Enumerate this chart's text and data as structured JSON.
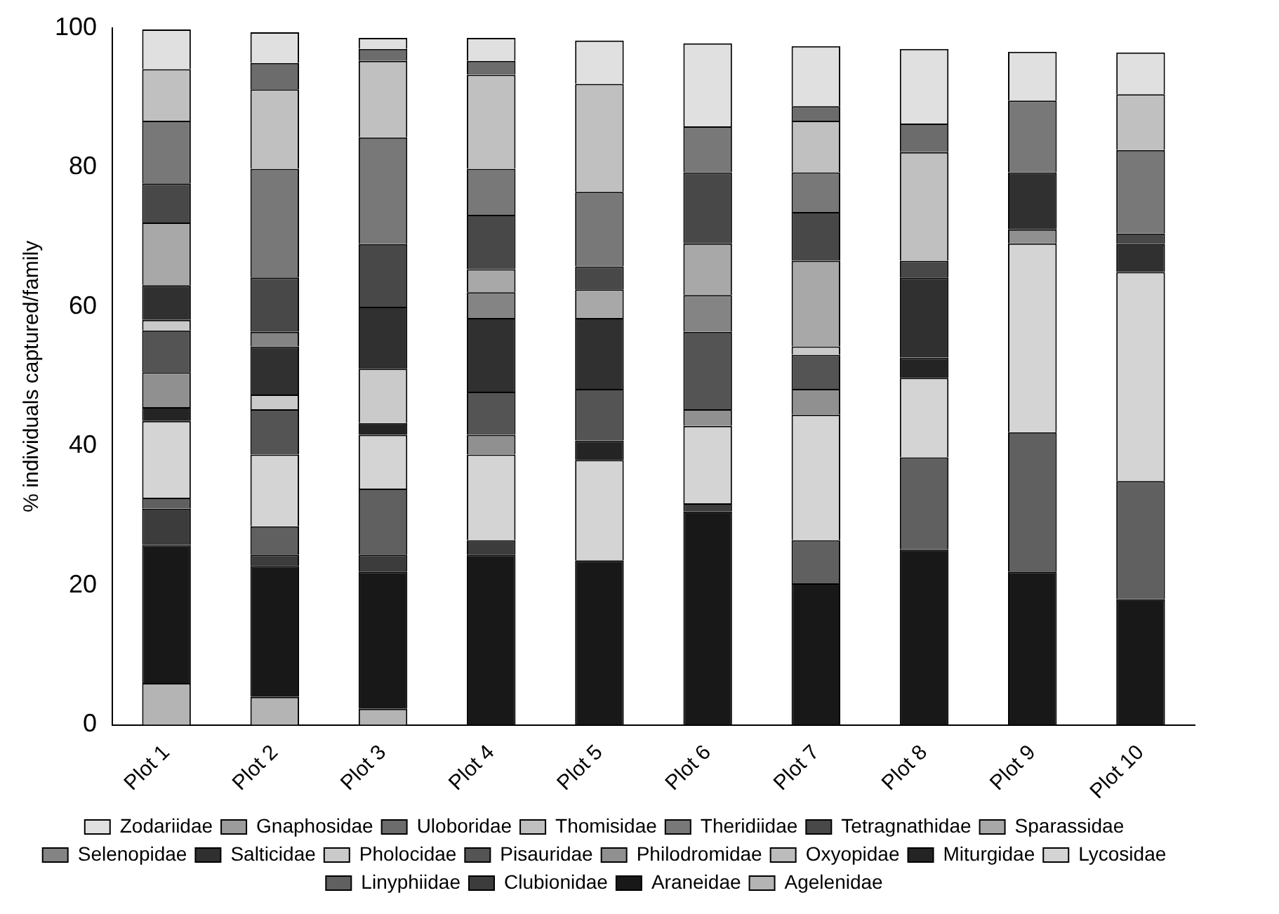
{
  "chart_data": {
    "type": "bar",
    "stacked": true,
    "ylabel": "% individuals captured/family",
    "categories": [
      "Plot 1",
      "Plot 2",
      "Plot 3",
      "Plot 4",
      "Plot 5",
      "Plot 6",
      "Plot 7",
      "Plot 8",
      "Plot 9",
      "Plot 10"
    ],
    "ylim": [
      0,
      100
    ],
    "yticks": [
      0,
      20,
      40,
      60,
      80,
      100
    ],
    "grid": false,
    "legend": "bottom",
    "series": [
      {
        "name": "Agelenidae",
        "color": "#b4b4b4",
        "values": [
          6,
          4,
          2.3,
          0,
          0,
          0,
          0,
          0,
          0,
          0
        ]
      },
      {
        "name": "Araneidae",
        "color": "#181818",
        "values": [
          19.8,
          18.8,
          19.7,
          24.4,
          23.6,
          30.6,
          20.3,
          25.2,
          22,
          18
        ]
      },
      {
        "name": "Clubionidae",
        "color": "#3c3c3c",
        "values": [
          5.2,
          1.6,
          2.4,
          2.1,
          0,
          1.2,
          0,
          0,
          0,
          0
        ]
      },
      {
        "name": "Linyphiidae",
        "color": "#606060",
        "values": [
          1.6,
          4.1,
          9.5,
          0,
          0,
          0,
          6.2,
          13.2,
          20,
          17
        ]
      },
      {
        "name": "Lycosidae",
        "color": "#d4d4d4",
        "values": [
          11,
          10.3,
          7.7,
          12.3,
          14.4,
          11.1,
          18,
          11.4,
          27.1,
          30
        ]
      },
      {
        "name": "Miturgidae",
        "color": "#242424",
        "values": [
          2,
          0,
          1.7,
          0,
          2.8,
          0,
          0,
          2.9,
          0,
          0
        ]
      },
      {
        "name": "Oxyopidae",
        "color": "#bcbcbc",
        "values": [
          0,
          0,
          0,
          0,
          0,
          0,
          0,
          0,
          0,
          0
        ]
      },
      {
        "name": "Philodromidae",
        "color": "#909090",
        "values": [
          5,
          0,
          0,
          2.8,
          0,
          2.4,
          3.7,
          0,
          2,
          0
        ]
      },
      {
        "name": "Pisauridae",
        "color": "#545454",
        "values": [
          6,
          6.5,
          0,
          6.2,
          7.4,
          11.1,
          4.9,
          0,
          0,
          0
        ]
      },
      {
        "name": "Pholocidae",
        "color": "#cacaca",
        "values": [
          1.5,
          2.1,
          7.8,
          0,
          0,
          0,
          1.2,
          0,
          0,
          0
        ]
      },
      {
        "name": "Salticidae",
        "color": "#303030",
        "values": [
          5,
          6.9,
          8.9,
          10.6,
          10.2,
          0,
          0,
          11.5,
          8.2,
          4
        ]
      },
      {
        "name": "Selenopidae",
        "color": "#848484",
        "values": [
          0,
          2.1,
          0,
          3.7,
          0,
          5.3,
          0,
          0,
          0,
          0
        ]
      },
      {
        "name": "Sparassidae",
        "color": "#a8a8a8",
        "values": [
          9,
          0,
          0,
          3.3,
          4.1,
          7.4,
          12.3,
          0,
          0,
          0
        ]
      },
      {
        "name": "Tetragnathidae",
        "color": "#484848",
        "values": [
          5.6,
          7.8,
          9,
          7.8,
          3.3,
          10.2,
          7,
          2.4,
          0,
          1.5
        ]
      },
      {
        "name": "Theridiidae",
        "color": "#787878",
        "values": [
          9,
          15.6,
          15.3,
          6.6,
          10.7,
          6.6,
          5.7,
          0,
          10.3,
          12
        ]
      },
      {
        "name": "Thomisidae",
        "color": "#c0c0c0",
        "values": [
          7.4,
          11.4,
          11,
          13.5,
          15.5,
          0,
          7.4,
          15.6,
          0,
          8
        ]
      },
      {
        "name": "Uloboridae",
        "color": "#6c6c6c",
        "values": [
          0,
          3.8,
          1.7,
          2,
          0,
          0,
          2.1,
          4.1,
          0,
          0
        ]
      },
      {
        "name": "Gnaphosidae",
        "color": "#9c9c9c",
        "values": [
          0,
          0,
          0,
          0,
          0,
          0,
          0,
          0,
          0,
          0
        ]
      },
      {
        "name": "Zodariidae",
        "color": "#e0e0e0",
        "values": [
          5.7,
          4.4,
          1.6,
          3.3,
          6.2,
          11.9,
          8.6,
          10.7,
          7,
          6
        ]
      }
    ]
  }
}
